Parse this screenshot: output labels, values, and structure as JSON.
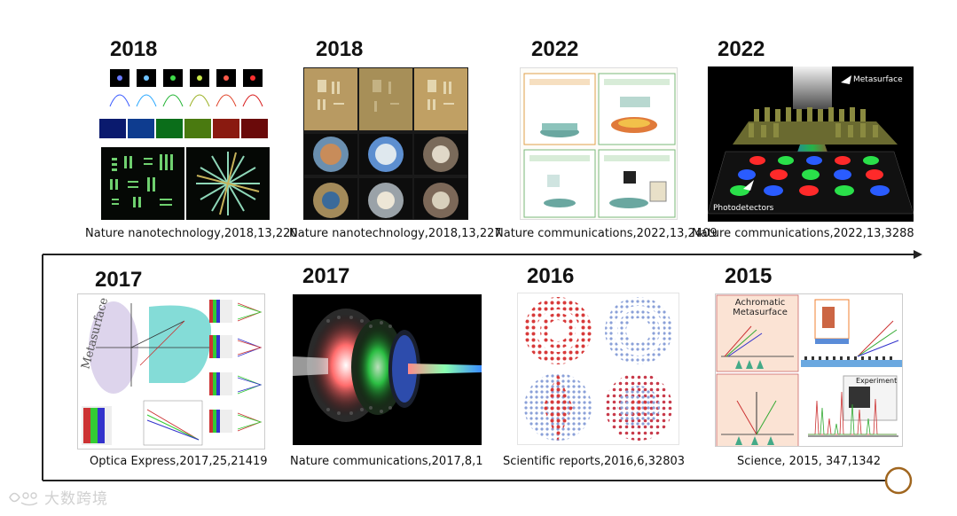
{
  "top_row": [
    {
      "year": "2018",
      "caption": "Nature nanotechnology,2018,13,220"
    },
    {
      "year": "2018",
      "caption": "Nature nanotechnology,2018,13,227"
    },
    {
      "year": "2022",
      "caption": "Nature communications,2022,13,2409"
    },
    {
      "year": "2022",
      "caption": "Nature communications,2022,13,3288"
    }
  ],
  "bottom_row": [
    {
      "year": "2017",
      "caption": "Optica Express,2017,25,21419"
    },
    {
      "year": "2017",
      "caption": "Nature communications,2017,8,1"
    },
    {
      "year": "2016",
      "caption": "Scientific reports,2016,6,32803"
    },
    {
      "year": "2015",
      "caption": "Science, 2015, 347,1342"
    }
  ],
  "figure_labels": {
    "metasurface": "Metasurface",
    "photodetectors": "Photodetectors",
    "achromatic": "Achromatic Metasurface",
    "experiment": "Experiment",
    "optics_metasurface": "Metasurface"
  },
  "watermark": "大数跨境",
  "colors": {
    "timeline": "#222222",
    "end_circle": "#a0661f"
  }
}
